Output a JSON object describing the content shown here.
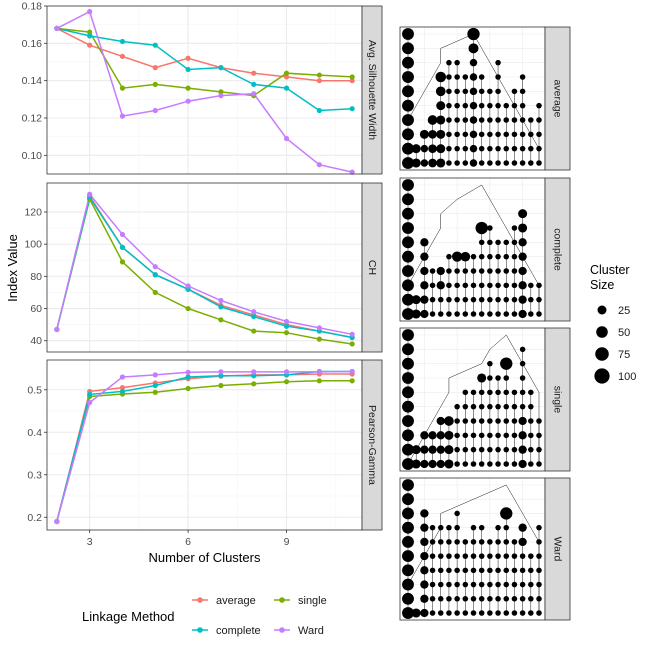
{
  "chart_data": [
    {
      "type": "line",
      "facet": "Avg. Silhouette Width",
      "x": [
        2,
        3,
        4,
        5,
        6,
        7,
        8,
        9,
        10,
        11
      ],
      "ylim": [
        0.09,
        0.18
      ],
      "yticks": [
        0.1,
        0.12,
        0.14,
        0.16,
        0.18
      ],
      "ytick_labels": [
        "0.10",
        "0.12",
        "0.14",
        "0.16",
        "0.18"
      ],
      "series": [
        {
          "name": "average",
          "values": [
            0.168,
            0.159,
            0.153,
            0.147,
            0.152,
            0.147,
            0.144,
            0.142,
            0.14,
            0.14
          ]
        },
        {
          "name": "single",
          "values": [
            0.168,
            0.166,
            0.136,
            0.138,
            0.136,
            0.134,
            0.132,
            0.144,
            0.143,
            0.142
          ]
        },
        {
          "name": "complete",
          "values": [
            0.168,
            0.164,
            0.161,
            0.159,
            0.146,
            0.147,
            0.138,
            0.136,
            0.124,
            0.125
          ]
        },
        {
          "name": "Ward",
          "values": [
            0.168,
            0.177,
            0.121,
            0.124,
            0.129,
            0.132,
            0.133,
            0.109,
            0.095,
            0.091
          ]
        }
      ]
    },
    {
      "type": "line",
      "facet": "CH",
      "x": [
        2,
        3,
        4,
        5,
        6,
        7,
        8,
        9,
        10,
        11
      ],
      "ylim": [
        33,
        138
      ],
      "yticks": [
        40,
        60,
        80,
        100,
        120
      ],
      "ytick_labels": [
        "40",
        "60",
        "80",
        "100",
        "120"
      ],
      "series": [
        {
          "name": "average",
          "values": [
            47,
            130,
            98,
            81,
            72,
            62,
            56,
            50,
            46,
            42
          ]
        },
        {
          "name": "single",
          "values": [
            47,
            128,
            89,
            70,
            60,
            53,
            46,
            45,
            41,
            38
          ]
        },
        {
          "name": "complete",
          "values": [
            47,
            129,
            98,
            81,
            72,
            61,
            55,
            49,
            46,
            42
          ]
        },
        {
          "name": "Ward",
          "values": [
            47,
            131,
            106,
            86,
            74,
            65,
            58,
            52,
            48,
            44
          ]
        }
      ]
    },
    {
      "type": "line",
      "facet": "Pearson-Gamma",
      "x": [
        2,
        3,
        4,
        5,
        6,
        7,
        8,
        9,
        10,
        11
      ],
      "ylim": [
        0.17,
        0.57
      ],
      "yticks": [
        0.2,
        0.3,
        0.4,
        0.5
      ],
      "ytick_labels": [
        "0.2",
        "0.3",
        "0.4",
        "0.5"
      ],
      "series": [
        {
          "name": "average",
          "values": [
            0.19,
            0.496,
            0.505,
            0.516,
            0.526,
            0.532,
            0.535,
            0.535,
            0.537,
            0.537
          ]
        },
        {
          "name": "single",
          "values": [
            0.19,
            0.484,
            0.49,
            0.494,
            0.503,
            0.51,
            0.514,
            0.519,
            0.521,
            0.521
          ]
        },
        {
          "name": "complete",
          "values": [
            0.19,
            0.489,
            0.496,
            0.51,
            0.53,
            0.533,
            0.533,
            0.535,
            0.543,
            0.543
          ]
        },
        {
          "name": "Ward",
          "values": [
            0.19,
            0.47,
            0.53,
            0.535,
            0.541,
            0.542,
            0.542,
            0.542,
            0.542,
            0.543
          ]
        }
      ]
    }
  ],
  "axes": {
    "ylabel": "Index Value",
    "xlabel": "Number of Clusters",
    "xticks": [
      3,
      6,
      9
    ],
    "xtick_labels": [
      "3",
      "6",
      "9"
    ],
    "xlim": [
      1.7,
      11.3
    ]
  },
  "legend": {
    "title": "Linkage Method",
    "items": [
      {
        "label": "average",
        "color": "#F8766D"
      },
      {
        "label": "single",
        "color": "#7CAE00"
      },
      {
        "label": "complete",
        "color": "#00BFC4"
      },
      {
        "label": "Ward",
        "color": "#C77CFF"
      }
    ]
  },
  "colors": {
    "average": "#F8766D",
    "single": "#7CAE00",
    "complete": "#00BFC4",
    "Ward": "#C77CFF",
    "strip": "#d9d9d9",
    "grid": "#ebebeb",
    "grid_minor": "#f5f5f5"
  },
  "trees": [
    {
      "label": "average",
      "root_col": 8,
      "chain": [
        [
          4,
          8
        ],
        [
          4,
          4
        ],
        [
          3,
          4
        ],
        [
          2,
          3
        ],
        [
          1,
          2
        ],
        [
          0,
          1
        ]
      ],
      "columns": [
        {
          "col": 0,
          "sizes": [
            100,
            100,
            100,
            100,
            100,
            100,
            100,
            100,
            100,
            100
          ]
        },
        {
          "col": 1,
          "sizes": [
            50,
            50
          ]
        },
        {
          "col": 2,
          "sizes": [
            50,
            30,
            30
          ]
        },
        {
          "col": 3,
          "sizes": [
            60,
            45,
            45,
            45
          ]
        },
        {
          "col": 4,
          "sizes": [
            75,
            60,
            50,
            50,
            50,
            50,
            50
          ]
        },
        {
          "col": 5,
          "sizes": [
            12,
            12,
            12,
            12,
            12,
            12,
            12,
            12
          ]
        },
        {
          "col": 6,
          "sizes": [
            12,
            12,
            12,
            12,
            12,
            12,
            12,
            12
          ]
        },
        {
          "col": 7,
          "sizes": [
            12,
            12,
            12,
            12,
            12,
            12,
            12
          ]
        },
        {
          "col": 8,
          "sizes": [
            110,
            65,
            30,
            30,
            30,
            30,
            30,
            30,
            30,
            30
          ]
        },
        {
          "col": 9,
          "sizes": [
            12,
            12,
            12,
            12,
            12,
            12,
            12
          ]
        },
        {
          "col": 10,
          "sizes": [
            12,
            12,
            12,
            12,
            12,
            12
          ]
        },
        {
          "col": 11,
          "sizes": [
            12,
            12,
            12,
            12,
            12,
            12,
            12,
            12
          ]
        },
        {
          "col": 12,
          "sizes": [
            12,
            12,
            12,
            12,
            12
          ]
        },
        {
          "col": 13,
          "sizes": [
            12,
            12,
            12,
            12,
            12,
            12
          ]
        },
        {
          "col": 14,
          "sizes": [
            12,
            12,
            12,
            12,
            12,
            12,
            12
          ]
        },
        {
          "col": 15,
          "sizes": [
            12,
            12,
            12,
            12
          ]
        },
        {
          "col": 16,
          "sizes": [
            12,
            12,
            12,
            12,
            12
          ]
        }
      ]
    },
    {
      "label": "complete",
      "root_col": 9,
      "chain": [
        [
          6,
          9
        ],
        [
          4,
          6
        ],
        [
          4,
          4
        ],
        [
          3,
          4
        ],
        [
          2,
          3
        ],
        [
          1,
          2
        ],
        [
          0,
          1
        ]
      ],
      "columns": [
        {
          "col": 0,
          "sizes": [
            100,
            100,
            100,
            100,
            100,
            100,
            100,
            100,
            100,
            100
          ]
        },
        {
          "col": 1,
          "sizes": [
            50,
            50
          ]
        },
        {
          "col": 2,
          "sizes": [
            40,
            40,
            40,
            40,
            40,
            40
          ]
        },
        {
          "col": 3,
          "sizes": [
            12,
            12,
            12,
            12
          ]
        },
        {
          "col": 4,
          "sizes": [
            40,
            40,
            12,
            12
          ]
        },
        {
          "col": 5,
          "sizes": [
            12,
            12,
            12,
            12,
            12
          ]
        },
        {
          "col": 6,
          "sizes": [
            70,
            12,
            12,
            12,
            12
          ]
        },
        {
          "col": 7,
          "sizes": [
            60,
            12,
            12,
            12,
            12
          ]
        },
        {
          "col": 8,
          "sizes": [
            12,
            12,
            12,
            12,
            12
          ]
        },
        {
          "col": 9,
          "sizes": [
            110,
            12,
            12,
            12,
            12,
            12,
            12
          ]
        },
        {
          "col": 10,
          "sizes": [
            12,
            12,
            12,
            12,
            12,
            12,
            12
          ]
        },
        {
          "col": 11,
          "sizes": [
            12,
            12,
            12,
            12,
            12,
            12
          ]
        },
        {
          "col": 12,
          "sizes": [
            12,
            12,
            12,
            12,
            12,
            12
          ]
        },
        {
          "col": 13,
          "sizes": [
            12,
            12,
            12,
            12,
            12,
            12,
            12
          ]
        },
        {
          "col": 14,
          "sizes": [
            50,
            50,
            40,
            40,
            40,
            40,
            40,
            40
          ]
        },
        {
          "col": 15,
          "sizes": [
            12,
            12,
            12
          ]
        },
        {
          "col": 16,
          "sizes": [
            12,
            12,
            12
          ]
        }
      ]
    },
    {
      "label": "single",
      "root_col": 12,
      "chain": [
        [
          10,
          12
        ],
        [
          9,
          10
        ],
        [
          5,
          9
        ],
        [
          5,
          5
        ],
        [
          4,
          5
        ],
        [
          3,
          4
        ],
        [
          2,
          3
        ],
        [
          1,
          2
        ],
        [
          0,
          1
        ]
      ],
      "columns": [
        {
          "col": 0,
          "sizes": [
            100,
            100,
            100,
            100,
            100,
            100,
            100,
            100,
            100,
            100
          ]
        },
        {
          "col": 1,
          "sizes": [
            50,
            50
          ]
        },
        {
          "col": 2,
          "sizes": [
            40,
            40,
            40
          ]
        },
        {
          "col": 3,
          "sizes": [
            40,
            40,
            40
          ]
        },
        {
          "col": 4,
          "sizes": [
            40,
            40,
            40,
            40
          ]
        },
        {
          "col": 5,
          "sizes": [
            60,
            50,
            50,
            50
          ]
        },
        {
          "col": 6,
          "sizes": [
            12,
            12,
            12,
            12,
            12
          ]
        },
        {
          "col": 7,
          "sizes": [
            12,
            12,
            12,
            12,
            12,
            12
          ]
        },
        {
          "col": 8,
          "sizes": [
            12,
            12,
            12,
            12,
            12,
            12
          ]
        },
        {
          "col": 9,
          "sizes": [
            50,
            12,
            12,
            12,
            12,
            12,
            12
          ]
        },
        {
          "col": 10,
          "sizes": [
            12,
            12,
            12,
            12,
            12,
            12,
            12,
            12
          ]
        },
        {
          "col": 11,
          "sizes": [
            12,
            12,
            12,
            12,
            12,
            12,
            12
          ]
        },
        {
          "col": 12,
          "sizes": [
            110,
            12,
            12,
            12,
            12,
            12,
            12,
            12
          ]
        },
        {
          "col": 13,
          "sizes": [
            12,
            12,
            12,
            12,
            12,
            12
          ]
        },
        {
          "col": 14,
          "sizes": [
            12,
            12,
            12,
            12,
            12,
            40,
            40,
            40,
            40
          ]
        },
        {
          "col": 15,
          "sizes": [
            12,
            12,
            12,
            12,
            12,
            12
          ]
        },
        {
          "col": 16,
          "sizes": [
            12,
            12,
            12,
            12
          ]
        }
      ]
    },
    {
      "label": "Ward",
      "root_col": 12,
      "chain": [
        [
          8,
          12
        ],
        [
          4,
          8
        ],
        [
          4,
          4
        ],
        [
          3,
          4
        ],
        [
          2,
          3
        ],
        [
          1,
          2
        ],
        [
          0,
          1
        ]
      ],
      "columns": [
        {
          "col": 0,
          "sizes": [
            100,
            100,
            100,
            100,
            100,
            100,
            100,
            100,
            100,
            100
          ]
        },
        {
          "col": 1,
          "sizes": [
            50
          ]
        },
        {
          "col": 2,
          "sizes": [
            40,
            40,
            40,
            40,
            40,
            40,
            40,
            40
          ]
        },
        {
          "col": 3,
          "sizes": [
            12,
            12,
            12,
            12,
            12,
            12,
            12
          ]
        },
        {
          "col": 4,
          "sizes": [
            12,
            12,
            12,
            12,
            12,
            12,
            12
          ]
        },
        {
          "col": 5,
          "sizes": [
            12,
            12,
            12,
            12,
            12,
            12,
            12
          ]
        },
        {
          "col": 6,
          "sizes": [
            12,
            12,
            12,
            12,
            12,
            12,
            12,
            12
          ]
        },
        {
          "col": 7,
          "sizes": [
            12,
            12,
            12,
            12,
            12,
            12
          ]
        },
        {
          "col": 8,
          "sizes": [
            12,
            12,
            12,
            12,
            12,
            12,
            12
          ]
        },
        {
          "col": 9,
          "sizes": [
            12,
            12,
            12,
            12,
            12,
            12,
            12
          ]
        },
        {
          "col": 10,
          "sizes": [
            12,
            12,
            12,
            12,
            12,
            12
          ]
        },
        {
          "col": 11,
          "sizes": [
            12,
            12,
            12,
            12,
            12,
            12,
            12
          ]
        },
        {
          "col": 12,
          "sizes": [
            110,
            12,
            12,
            12,
            12,
            12,
            12,
            12
          ]
        },
        {
          "col": 13,
          "sizes": [
            12,
            12,
            12,
            12,
            12,
            12
          ]
        },
        {
          "col": 14,
          "sizes": [
            40,
            40,
            12,
            12,
            12,
            12,
            12
          ]
        },
        {
          "col": 15,
          "sizes": [
            12,
            12,
            12,
            12,
            12
          ]
        },
        {
          "col": 16,
          "sizes": [
            12,
            12,
            12,
            12,
            12,
            12,
            12
          ]
        }
      ]
    }
  ],
  "size_legend": {
    "title_line1": "Cluster",
    "title_line2": "Size",
    "items": [
      {
        "label": "25",
        "size": 25
      },
      {
        "label": "50",
        "size": 50
      },
      {
        "label": "75",
        "size": 75
      },
      {
        "label": "100",
        "size": 100
      }
    ]
  }
}
